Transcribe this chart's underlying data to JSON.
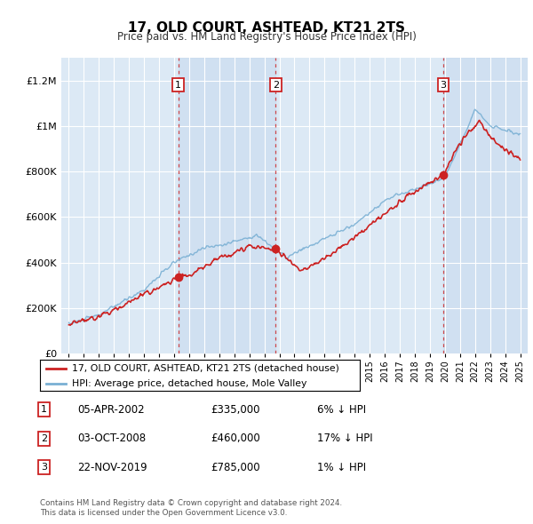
{
  "title": "17, OLD COURT, ASHTEAD, KT21 2TS",
  "subtitle": "Price paid vs. HM Land Registry's House Price Index (HPI)",
  "footer1": "Contains HM Land Registry data © Crown copyright and database right 2024.",
  "footer2": "This data is licensed under the Open Government Licence v3.0.",
  "legend_house": "17, OLD COURT, ASHTEAD, KT21 2TS (detached house)",
  "legend_hpi": "HPI: Average price, detached house, Mole Valley",
  "transactions": [
    {
      "num": 1,
      "date": "05-APR-2002",
      "price": "£335,000",
      "pct": "6% ↓ HPI",
      "year": 2002.27,
      "price_val": 335000
    },
    {
      "num": 2,
      "date": "03-OCT-2008",
      "price": "£460,000",
      "pct": "17% ↓ HPI",
      "year": 2008.75,
      "price_val": 460000
    },
    {
      "num": 3,
      "date": "22-NOV-2019",
      "price": "£785,000",
      "pct": "1% ↓ HPI",
      "year": 2019.9,
      "price_val": 785000
    }
  ],
  "ylim": [
    0,
    1300000
  ],
  "xlim_start": 1994.5,
  "xlim_end": 2025.5,
  "background_color": "#ffffff",
  "plot_bg": "#dce9f5",
  "grid_color": "#ffffff",
  "hpi_color": "#7ab0d4",
  "house_color": "#cc2222",
  "vline_color": "#cc2222",
  "marker_color": "#cc2222",
  "shaded_color": "#c5d9ee"
}
